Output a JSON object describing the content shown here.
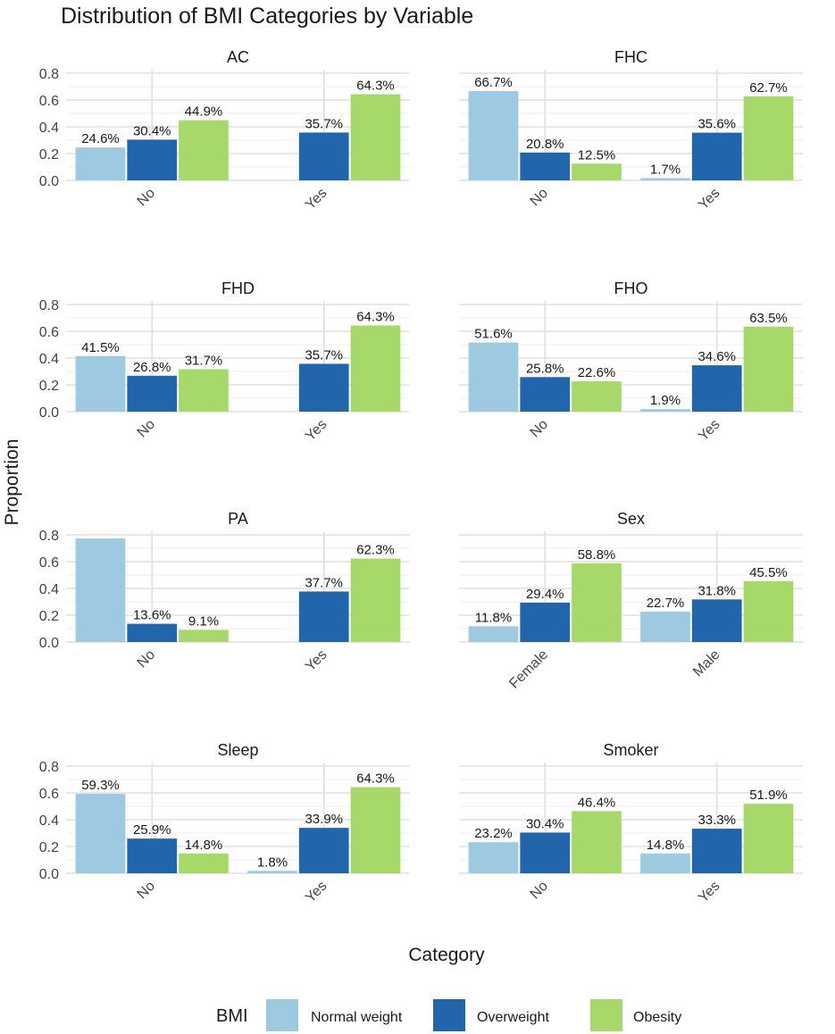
{
  "chart_data": {
    "type": "bar",
    "title": "Distribution of BMI Categories by Variable",
    "xlabel": "Category",
    "ylabel": "Proportion",
    "ylim": [
      0,
      0.8
    ],
    "yticks": [
      "0.0",
      "0.2",
      "0.4",
      "0.6",
      "0.8"
    ],
    "grid": true,
    "legend": {
      "title": "BMI",
      "position": "bottom",
      "entries": [
        {
          "name": "Normal weight",
          "color": "#9ecae1"
        },
        {
          "name": "Overweight",
          "color": "#2166ac"
        },
        {
          "name": "Obesity",
          "color": "#a6d96a"
        }
      ]
    },
    "series_names": [
      "Normal weight",
      "Overweight",
      "Obesity"
    ],
    "facets": [
      {
        "name": "AC",
        "categories": [
          "No",
          "Yes"
        ],
        "values": [
          [
            0.246,
            0.304,
            0.449
          ],
          [
            null,
            0.357,
            0.643
          ]
        ],
        "labels": [
          [
            "24.6%",
            "30.4%",
            "44.9%"
          ],
          [
            null,
            "35.7%",
            "64.3%"
          ]
        ]
      },
      {
        "name": "FHC",
        "categories": [
          "No",
          "Yes"
        ],
        "values": [
          [
            0.667,
            0.208,
            0.125
          ],
          [
            0.017,
            0.356,
            0.627
          ]
        ],
        "labels": [
          [
            "66.7%",
            "20.8%",
            "12.5%"
          ],
          [
            "1.7%",
            "35.6%",
            "62.7%"
          ]
        ]
      },
      {
        "name": "FHD",
        "categories": [
          "No",
          "Yes"
        ],
        "values": [
          [
            0.415,
            0.268,
            0.317
          ],
          [
            null,
            0.357,
            0.643
          ]
        ],
        "labels": [
          [
            "41.5%",
            "26.8%",
            "31.7%"
          ],
          [
            null,
            "35.7%",
            "64.3%"
          ]
        ]
      },
      {
        "name": "FHO",
        "categories": [
          "No",
          "Yes"
        ],
        "values": [
          [
            0.516,
            0.258,
            0.226
          ],
          [
            0.019,
            0.346,
            0.635
          ]
        ],
        "labels": [
          [
            "51.6%",
            "25.8%",
            "22.6%"
          ],
          [
            "1.9%",
            "34.6%",
            "63.5%"
          ]
        ]
      },
      {
        "name": "PA",
        "categories": [
          "No",
          "Yes"
        ],
        "values": [
          [
            0.773,
            0.136,
            0.091
          ],
          [
            null,
            0.377,
            0.623
          ]
        ],
        "labels": [
          [
            null,
            "13.6%",
            "9.1%"
          ],
          [
            null,
            "37.7%",
            "62.3%"
          ]
        ]
      },
      {
        "name": "Sex",
        "categories": [
          "Female",
          "Male"
        ],
        "values": [
          [
            0.118,
            0.294,
            0.588
          ],
          [
            0.227,
            0.318,
            0.455
          ]
        ],
        "labels": [
          [
            "11.8%",
            "29.4%",
            "58.8%"
          ],
          [
            "22.7%",
            "31.8%",
            "45.5%"
          ]
        ]
      },
      {
        "name": "Sleep",
        "categories": [
          "No",
          "Yes"
        ],
        "values": [
          [
            0.593,
            0.259,
            0.148
          ],
          [
            0.018,
            0.339,
            0.643
          ]
        ],
        "labels": [
          [
            "59.3%",
            "25.9%",
            "14.8%"
          ],
          [
            "1.8%",
            "33.9%",
            "64.3%"
          ]
        ]
      },
      {
        "name": "Smoker",
        "categories": [
          "No",
          "Yes"
        ],
        "values": [
          [
            0.232,
            0.304,
            0.464
          ],
          [
            0.148,
            0.333,
            0.519
          ]
        ],
        "labels": [
          [
            "23.2%",
            "30.4%",
            "46.4%"
          ],
          [
            "14.8%",
            "33.3%",
            "51.9%"
          ]
        ]
      }
    ]
  }
}
